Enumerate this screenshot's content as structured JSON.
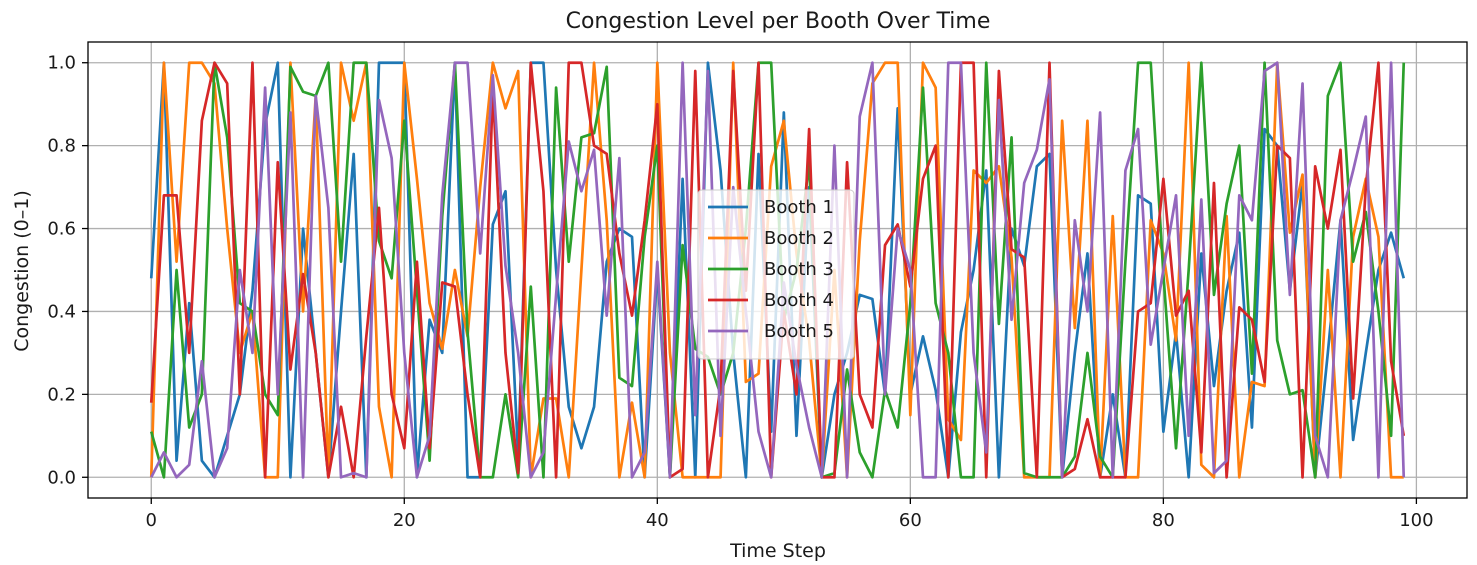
{
  "chart_data": {
    "type": "line",
    "title": "Congestion Level per Booth Over Time",
    "xlabel": "Time Step",
    "ylabel": "Congestion (0–1)",
    "xlim": [
      -5,
      104
    ],
    "ylim": [
      -0.05,
      1.05
    ],
    "xticks": [
      0,
      20,
      40,
      60,
      80,
      100
    ],
    "yticks": [
      0.0,
      0.2,
      0.4,
      0.6,
      0.8,
      1.0
    ],
    "xtick_labels": [
      "0",
      "20",
      "40",
      "60",
      "80",
      "100"
    ],
    "ytick_labels": [
      "0.0",
      "0.2",
      "0.4",
      "0.6",
      "0.8",
      "1.0"
    ],
    "grid": true,
    "legend": "center",
    "series": [
      {
        "name": "Booth 1",
        "color": "#1f77b4",
        "values": [
          0.48,
          1.0,
          0.04,
          0.42,
          0.04,
          0.0,
          0.1,
          0.2,
          0.45,
          0.85,
          1.0,
          0.0,
          0.6,
          0.3,
          0.0,
          0.4,
          0.78,
          0.0,
          1.0,
          1.0,
          1.0,
          0.0,
          0.38,
          0.3,
          1.0,
          0.0,
          0.0,
          0.61,
          0.69,
          0.05,
          1.0,
          1.0,
          0.5,
          0.17,
          0.07,
          0.17,
          0.52,
          0.6,
          0.58,
          0.0,
          0.5,
          0.0,
          0.72,
          0.0,
          1.0,
          0.74,
          0.3,
          0.0,
          0.78,
          0.11,
          0.88,
          0.1,
          0.7,
          0.0,
          0.2,
          0.3,
          0.44,
          0.43,
          0.2,
          0.89,
          0.2,
          0.34,
          0.21,
          0.0,
          0.35,
          0.5,
          0.74,
          0.0,
          0.6,
          0.51,
          0.75,
          0.78,
          0.0,
          0.3,
          0.54,
          0.0,
          0.2,
          0.0,
          0.68,
          0.66,
          0.11,
          0.35,
          0.0,
          0.54,
          0.22,
          0.45,
          0.59,
          0.12,
          0.84,
          0.8,
          0.45,
          0.71,
          0.0,
          0.3,
          0.62,
          0.09,
          0.3,
          0.5,
          0.59,
          0.48
        ]
      },
      {
        "name": "Booth 2",
        "color": "#ff7f0e",
        "values": [
          0.0,
          1.0,
          0.52,
          1.0,
          1.0,
          0.95,
          0.6,
          0.3,
          0.4,
          0.0,
          0.0,
          1.0,
          0.4,
          0.92,
          0.0,
          1.0,
          0.86,
          1.0,
          0.17,
          0.0,
          1.0,
          0.72,
          0.42,
          0.31,
          0.5,
          0.34,
          0.7,
          1.0,
          0.89,
          0.98,
          0.0,
          0.19,
          0.19,
          0.0,
          0.5,
          1.0,
          0.62,
          0.0,
          0.18,
          0.0,
          1.0,
          0.3,
          0.0,
          0.0,
          0.0,
          0.0,
          1.0,
          0.23,
          0.25,
          0.75,
          0.86,
          0.54,
          0.33,
          0.0,
          0.5,
          0.0,
          0.57,
          0.95,
          1.0,
          1.0,
          0.15,
          1.0,
          0.94,
          0.14,
          0.09,
          0.74,
          0.71,
          0.75,
          0.53,
          0.0,
          0.0,
          0.0,
          0.86,
          0.36,
          0.86,
          0.0,
          0.63,
          0.0,
          0.0,
          0.62,
          0.54,
          0.33,
          1.0,
          0.03,
          0.0,
          0.63,
          0.0,
          0.23,
          0.22,
          1.0,
          0.59,
          0.73,
          0.0,
          0.5,
          0.0,
          0.58,
          0.72,
          0.58,
          0.0,
          0.0
        ]
      },
      {
        "name": "Booth 3",
        "color": "#2ca02c",
        "values": [
          0.11,
          0.0,
          0.5,
          0.12,
          0.2,
          1.0,
          0.82,
          0.42,
          0.4,
          0.2,
          0.15,
          0.99,
          0.93,
          0.92,
          1.0,
          0.52,
          1.0,
          1.0,
          0.57,
          0.48,
          0.86,
          0.45,
          0.04,
          0.63,
          1.0,
          0.35,
          0.0,
          0.0,
          0.2,
          0.0,
          0.46,
          0.0,
          0.94,
          0.52,
          0.82,
          0.83,
          0.99,
          0.24,
          0.22,
          0.58,
          0.8,
          0.0,
          0.56,
          0.31,
          0.29,
          0.2,
          0.3,
          0.6,
          1.0,
          1.0,
          0.38,
          0.5,
          0.76,
          0.0,
          0.01,
          0.26,
          0.06,
          0.0,
          0.21,
          0.12,
          0.42,
          0.94,
          0.42,
          0.3,
          0.0,
          0.0,
          1.0,
          0.37,
          0.82,
          0.01,
          0.0,
          0.0,
          0.0,
          0.05,
          0.3,
          0.05,
          0.0,
          0.52,
          1.0,
          1.0,
          0.49,
          0.07,
          0.5,
          1.0,
          0.44,
          0.66,
          0.8,
          0.25,
          1.0,
          0.33,
          0.2,
          0.21,
          0.0,
          0.92,
          1.0,
          0.52,
          0.64,
          0.4,
          0.1,
          1.0
        ]
      },
      {
        "name": "Booth 4",
        "color": "#d62728",
        "values": [
          0.18,
          0.68,
          0.68,
          0.3,
          0.86,
          1.0,
          0.95,
          0.2,
          1.0,
          0.0,
          0.76,
          0.26,
          0.49,
          0.3,
          0.0,
          0.17,
          0.0,
          0.34,
          0.65,
          0.2,
          0.07,
          0.52,
          0.07,
          0.47,
          0.46,
          0.2,
          0.0,
          0.94,
          0.3,
          0.01,
          1.0,
          0.69,
          0.0,
          1.0,
          1.0,
          0.8,
          0.78,
          0.54,
          0.39,
          0.62,
          0.9,
          0.0,
          0.02,
          0.98,
          0.0,
          0.22,
          0.98,
          0.45,
          1.0,
          0.0,
          0.4,
          0.2,
          0.84,
          0.0,
          0.0,
          0.76,
          0.2,
          0.12,
          0.56,
          0.61,
          0.46,
          0.72,
          0.8,
          0.0,
          1.0,
          1.0,
          0.0,
          0.98,
          0.55,
          0.53,
          0.0,
          1.0,
          0.0,
          0.02,
          0.14,
          0.0,
          0.0,
          0.0,
          0.4,
          0.42,
          0.72,
          0.39,
          0.45,
          0.06,
          0.71,
          0.0,
          0.41,
          0.38,
          0.23,
          0.8,
          0.77,
          0.0,
          0.75,
          0.6,
          0.79,
          0.19,
          0.7,
          1.0,
          0.28,
          0.1
        ]
      },
      {
        "name": "Booth 5",
        "color": "#9467bd",
        "values": [
          0.0,
          0.06,
          0.0,
          0.03,
          0.28,
          0.0,
          0.07,
          0.5,
          0.3,
          0.94,
          0.2,
          0.88,
          0.0,
          0.92,
          0.65,
          0.0,
          0.01,
          0.0,
          0.91,
          0.77,
          0.3,
          0.0,
          0.1,
          0.68,
          1.0,
          1.0,
          0.54,
          0.97,
          0.51,
          0.3,
          0.0,
          0.06,
          0.44,
          0.81,
          0.69,
          0.79,
          0.39,
          0.77,
          0.0,
          0.06,
          0.52,
          0.0,
          1.0,
          0.15,
          0.98,
          0.1,
          0.7,
          0.4,
          0.11,
          0.0,
          0.47,
          0.27,
          0.12,
          0.0,
          0.8,
          0.0,
          0.87,
          1.0,
          0.2,
          0.6,
          0.5,
          0.0,
          0.0,
          1.0,
          1.0,
          0.3,
          0.06,
          0.91,
          0.38,
          0.71,
          0.79,
          0.96,
          0.0,
          0.62,
          0.4,
          0.88,
          0.0,
          0.74,
          0.84,
          0.32,
          0.5,
          0.68,
          0.1,
          0.67,
          0.01,
          0.04,
          0.68,
          0.62,
          0.98,
          1.0,
          0.44,
          0.95,
          0.1,
          0.0,
          0.62,
          0.74,
          0.87,
          0.0,
          1.0,
          0.0
        ]
      }
    ]
  }
}
